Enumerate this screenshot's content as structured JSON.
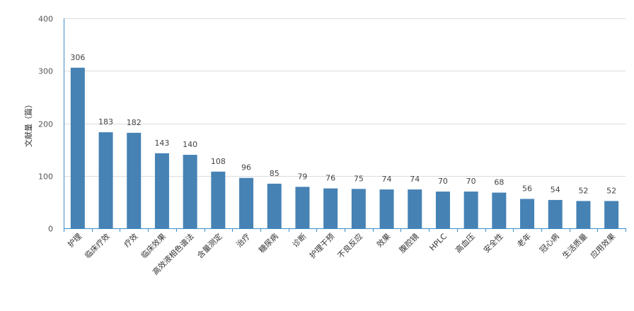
{
  "chart_data": {
    "type": "bar",
    "title": "",
    "xlabel": "",
    "ylabel": "文献量（篇）",
    "ylim": [
      0,
      400
    ],
    "yticks": [
      0,
      100,
      200,
      300,
      400
    ],
    "grid": true,
    "legend": "none",
    "bar_color": "#4682b4",
    "categories": [
      "护理",
      "临床疗效",
      "疗效",
      "临床效果",
      "高效液相色谱法",
      "含量测定",
      "治疗",
      "糖尿病",
      "诊断",
      "护理干预",
      "不良反应",
      "效果",
      "腹腔镜",
      "HPLC",
      "高血压",
      "安全性",
      "老年",
      "冠心病",
      "生活质量",
      "应用效果"
    ],
    "values": [
      306,
      183,
      182,
      143,
      140,
      108,
      96,
      85,
      79,
      76,
      75,
      74,
      74,
      70,
      70,
      68,
      56,
      54,
      52,
      52
    ]
  }
}
